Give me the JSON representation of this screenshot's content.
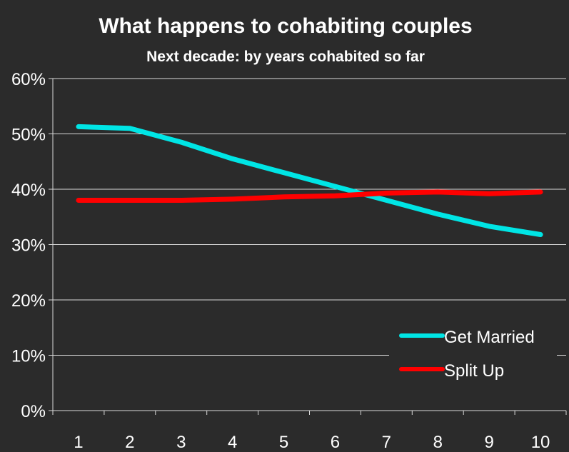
{
  "chart_data": {
    "type": "line",
    "title": "What happens to cohabiting couples",
    "subtitle": "Next decade: by years cohabited so far",
    "xlabel": "",
    "ylabel": "",
    "categories": [
      "1",
      "2",
      "3",
      "4",
      "5",
      "6",
      "7",
      "8",
      "9",
      "10"
    ],
    "ylim": [
      0,
      0.6
    ],
    "y_ticks": [
      0,
      0.1,
      0.2,
      0.3,
      0.4,
      0.5,
      0.6
    ],
    "y_tick_labels": [
      "0%",
      "10%",
      "20%",
      "30%",
      "40%",
      "50%",
      "60%"
    ],
    "grid": "horizontal",
    "legend_position": "bottom-right",
    "series": [
      {
        "name": "Get Married",
        "color": "#00e5e5",
        "values": [
          0.513,
          0.51,
          0.485,
          0.455,
          0.43,
          0.405,
          0.38,
          0.355,
          0.333,
          0.318
        ]
      },
      {
        "name": "Split Up",
        "color": "#ff0000",
        "values": [
          0.38,
          0.38,
          0.38,
          0.382,
          0.386,
          0.388,
          0.393,
          0.395,
          0.392,
          0.395
        ]
      }
    ]
  }
}
